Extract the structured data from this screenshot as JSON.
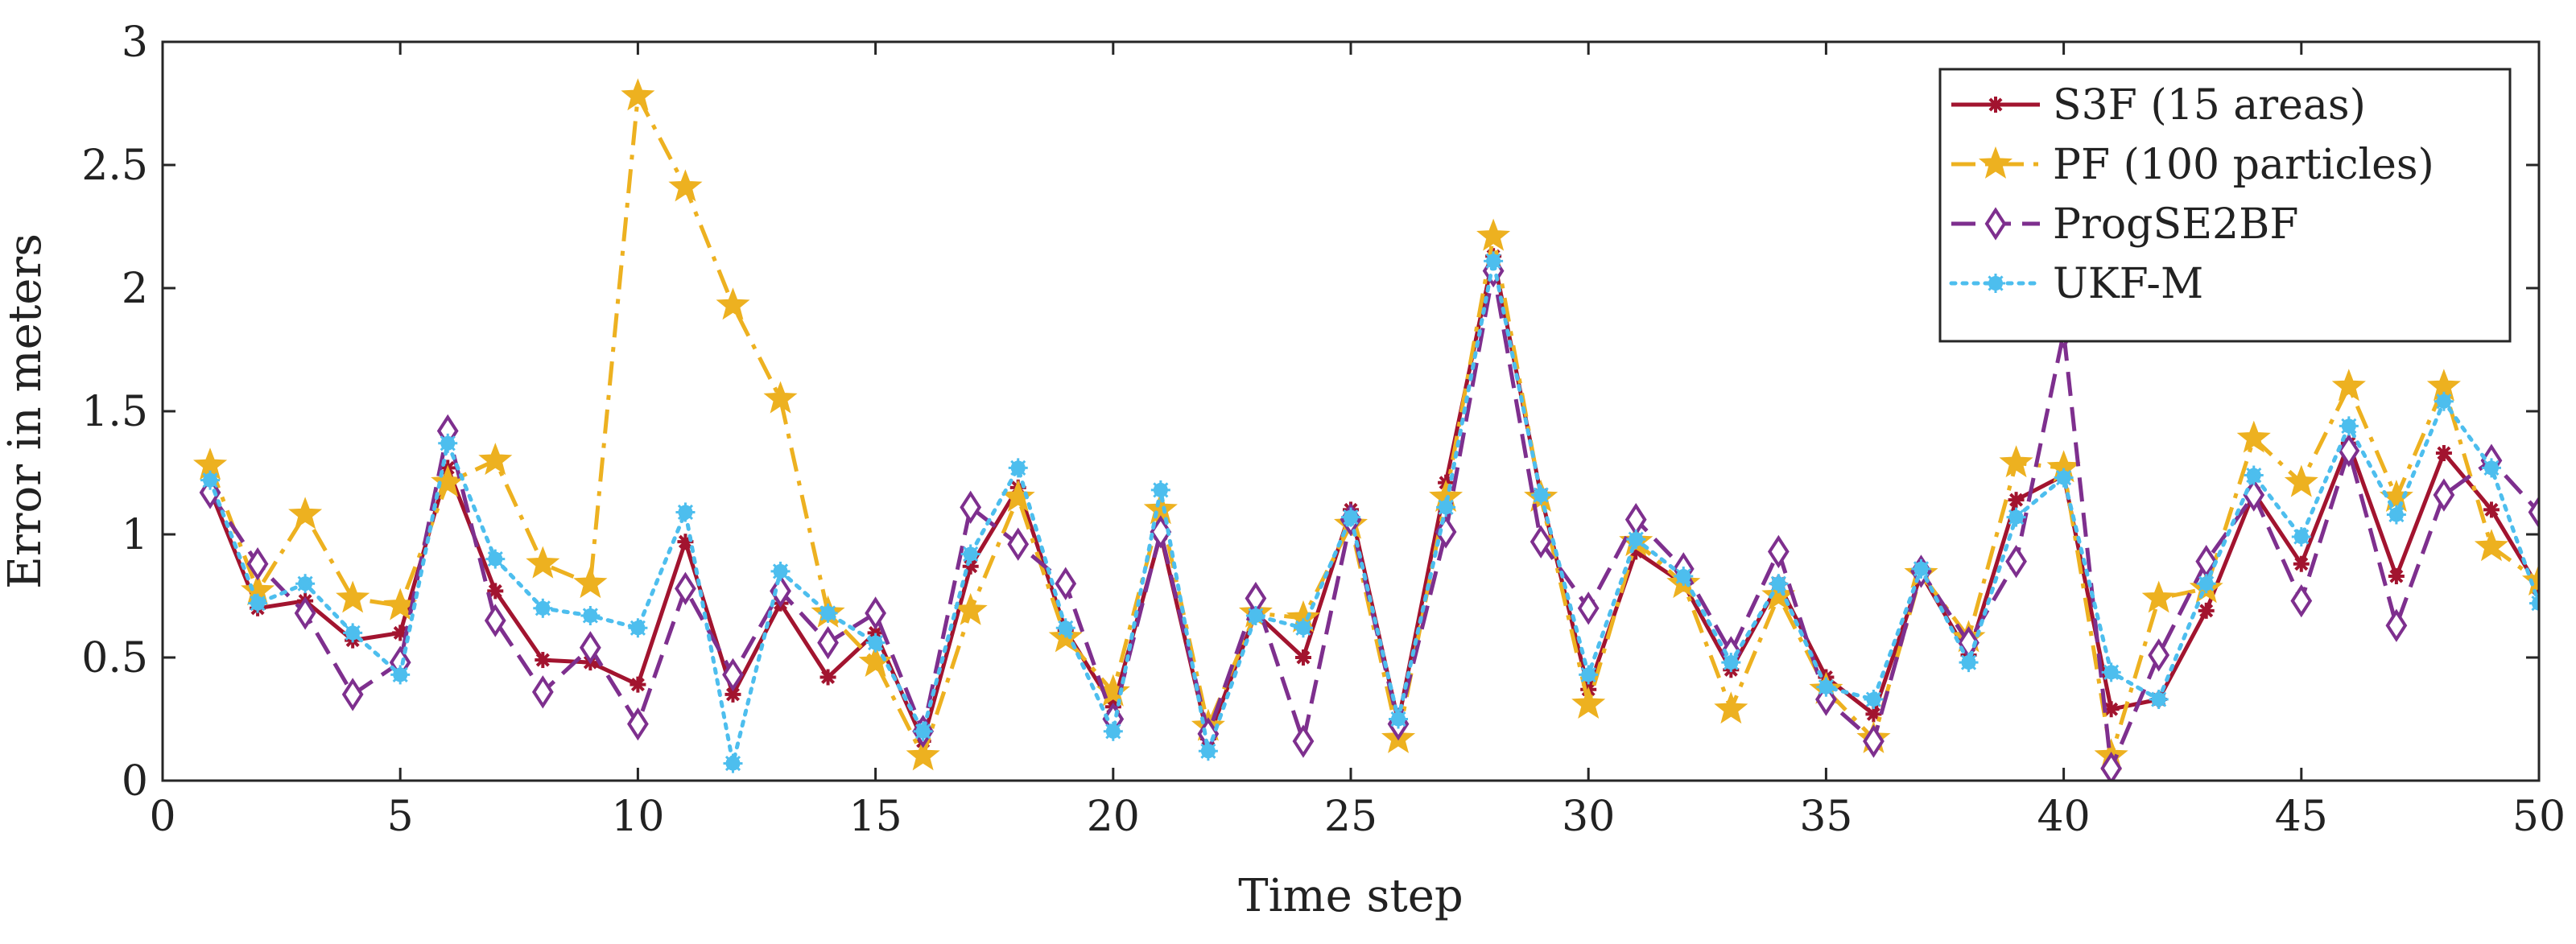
{
  "chart_data": {
    "type": "line",
    "title": "",
    "xlabel": "Time step",
    "ylabel": "Error in meters",
    "xlim": [
      0,
      50
    ],
    "ylim": [
      0,
      3
    ],
    "xticks": [
      0,
      5,
      10,
      15,
      20,
      25,
      30,
      35,
      40,
      45,
      50
    ],
    "yticks": [
      0,
      0.5,
      1,
      1.5,
      2,
      2.5,
      3
    ],
    "ytick_labels": [
      "0",
      "0.5",
      "1",
      "1.5",
      "2",
      "2.5",
      "3"
    ],
    "grid": false,
    "legend_position": "top-right",
    "x": [
      1,
      2,
      3,
      4,
      5,
      6,
      7,
      8,
      9,
      10,
      11,
      12,
      13,
      14,
      15,
      16,
      17,
      18,
      19,
      20,
      21,
      22,
      23,
      24,
      25,
      26,
      27,
      28,
      29,
      30,
      31,
      32,
      33,
      34,
      35,
      36,
      37,
      38,
      39,
      40,
      41,
      42,
      43,
      44,
      45,
      46,
      47,
      48,
      49,
      50
    ],
    "series": [
      {
        "name": "S3F (15 areas)",
        "color": "#a2142f",
        "line": "solid",
        "marker": "asterisk",
        "values": [
          1.18,
          0.7,
          0.73,
          0.57,
          0.6,
          1.27,
          0.77,
          0.49,
          0.48,
          0.39,
          0.97,
          0.35,
          0.72,
          0.42,
          0.6,
          0.16,
          0.87,
          1.19,
          0.61,
          0.3,
          1.0,
          0.17,
          0.68,
          0.5,
          1.1,
          0.24,
          1.21,
          2.13,
          1.16,
          0.37,
          0.93,
          0.8,
          0.45,
          0.8,
          0.42,
          0.27,
          0.84,
          0.51,
          1.14,
          1.24,
          0.29,
          0.33,
          0.69,
          1.17,
          0.88,
          1.37,
          0.83,
          1.33,
          1.1,
          0.78
        ]
      },
      {
        "name": "PF (100 particles)",
        "color": "#edb120",
        "line": "dashdot",
        "marker": "star",
        "values": [
          1.28,
          0.77,
          1.08,
          0.74,
          0.71,
          1.21,
          1.3,
          0.88,
          0.8,
          2.78,
          2.41,
          1.93,
          1.55,
          0.68,
          0.48,
          0.1,
          0.69,
          1.15,
          0.58,
          0.36,
          1.1,
          0.22,
          0.68,
          0.66,
          1.04,
          0.17,
          1.15,
          2.21,
          1.15,
          0.31,
          0.97,
          0.8,
          0.29,
          0.75,
          0.37,
          0.17,
          0.84,
          0.58,
          1.29,
          1.27,
          0.1,
          0.74,
          0.78,
          1.39,
          1.21,
          1.6,
          1.15,
          1.6,
          0.95,
          0.81
        ]
      },
      {
        "name": "ProgSE2BF",
        "color": "#7e2f8e",
        "line": "dashed",
        "marker": "diamond",
        "values": [
          1.17,
          0.88,
          0.68,
          0.35,
          0.48,
          1.42,
          0.65,
          0.36,
          0.54,
          0.23,
          0.78,
          0.43,
          0.77,
          0.56,
          0.68,
          0.2,
          1.11,
          0.96,
          0.8,
          0.25,
          1.01,
          0.19,
          0.74,
          0.16,
          1.06,
          0.23,
          1.01,
          2.07,
          0.97,
          0.7,
          1.06,
          0.86,
          0.52,
          0.93,
          0.33,
          0.16,
          0.85,
          0.56,
          0.89,
          1.82,
          0.05,
          0.51,
          0.89,
          1.16,
          0.73,
          1.34,
          0.63,
          1.16,
          1.3,
          1.09
        ]
      },
      {
        "name": "UKF-M",
        "color": "#4dbeee",
        "line": "dotted",
        "marker": "dot",
        "values": [
          1.22,
          0.72,
          0.8,
          0.6,
          0.43,
          1.37,
          0.9,
          0.7,
          0.67,
          0.62,
          1.09,
          0.07,
          0.85,
          0.68,
          0.56,
          0.2,
          0.92,
          1.27,
          0.62,
          0.2,
          1.18,
          0.12,
          0.67,
          0.62,
          1.07,
          0.25,
          1.11,
          2.11,
          1.16,
          0.43,
          0.98,
          0.83,
          0.48,
          0.8,
          0.38,
          0.33,
          0.86,
          0.48,
          1.07,
          1.23,
          0.44,
          0.33,
          0.8,
          1.24,
          0.99,
          1.44,
          1.08,
          1.54,
          1.27,
          0.72
        ]
      }
    ]
  }
}
